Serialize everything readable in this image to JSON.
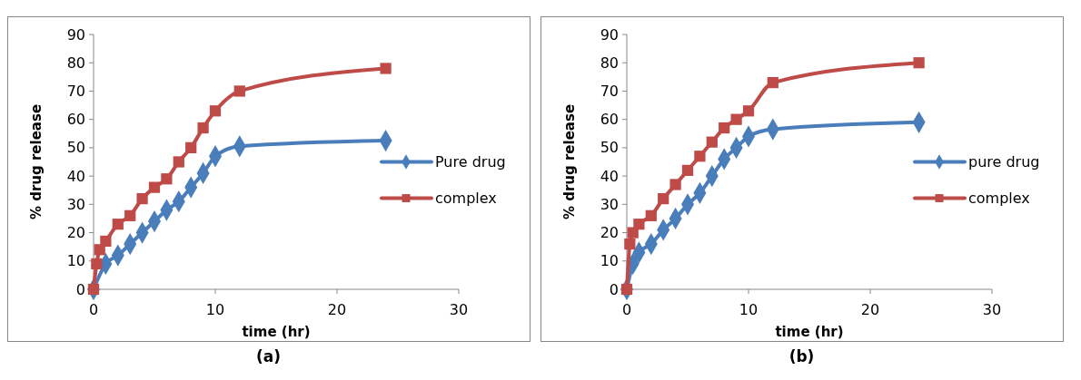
{
  "chart_data": [
    {
      "type": "line",
      "xlabel": "time (hr)",
      "ylabel": "% drug release",
      "annotations": [
        "(a)"
      ],
      "xlim": [
        0,
        30
      ],
      "xticks": [
        0,
        10,
        20,
        30
      ],
      "ylim": [
        0,
        90
      ],
      "yticks": [
        0,
        10,
        20,
        30,
        40,
        50,
        60,
        70,
        80,
        90
      ],
      "grid": false,
      "legend": "right",
      "line_style": "solid",
      "x": [
        0,
        0.25,
        0.5,
        1,
        2,
        3,
        4,
        5,
        6,
        7,
        8,
        9,
        10,
        12,
        24
      ],
      "series": [
        {
          "name": "Pure drug",
          "color": "#4a7ebb",
          "marker": "diamond",
          "values": [
            0,
            null,
            null,
            9,
            12,
            16,
            20,
            24,
            28,
            31,
            36,
            41,
            47,
            50.5,
            52.5
          ]
        },
        {
          "name": "complex",
          "color": "#be4b48",
          "marker": "square",
          "values": [
            0,
            9,
            14,
            17,
            23,
            26,
            32,
            36,
            39,
            45,
            50,
            57,
            63,
            70,
            78
          ]
        }
      ]
    },
    {
      "type": "line",
      "xlabel": "time (hr)",
      "ylabel": "% drug release",
      "annotations": [
        "(b)"
      ],
      "xlim": [
        0,
        30
      ],
      "xticks": [
        0,
        10,
        20,
        30
      ],
      "ylim": [
        0,
        90
      ],
      "yticks": [
        0,
        10,
        20,
        30,
        40,
        50,
        60,
        70,
        80,
        90
      ],
      "grid": false,
      "legend": "right",
      "line_style": "solid",
      "x": [
        0,
        0.25,
        0.5,
        1,
        2,
        3,
        4,
        5,
        6,
        7,
        8,
        9,
        10,
        12,
        24
      ],
      "series": [
        {
          "name": "pure drug",
          "color": "#4a7ebb",
          "marker": "diamond",
          "values": [
            0,
            null,
            9,
            13,
            16,
            21,
            25,
            30,
            34,
            40,
            46,
            50,
            54,
            56.5,
            59
          ]
        },
        {
          "name": "complex",
          "color": "#be4b48",
          "marker": "square",
          "values": [
            0,
            16,
            20,
            23,
            26,
            32,
            37,
            42,
            47,
            52,
            57,
            60,
            63,
            73,
            80
          ]
        }
      ]
    }
  ]
}
